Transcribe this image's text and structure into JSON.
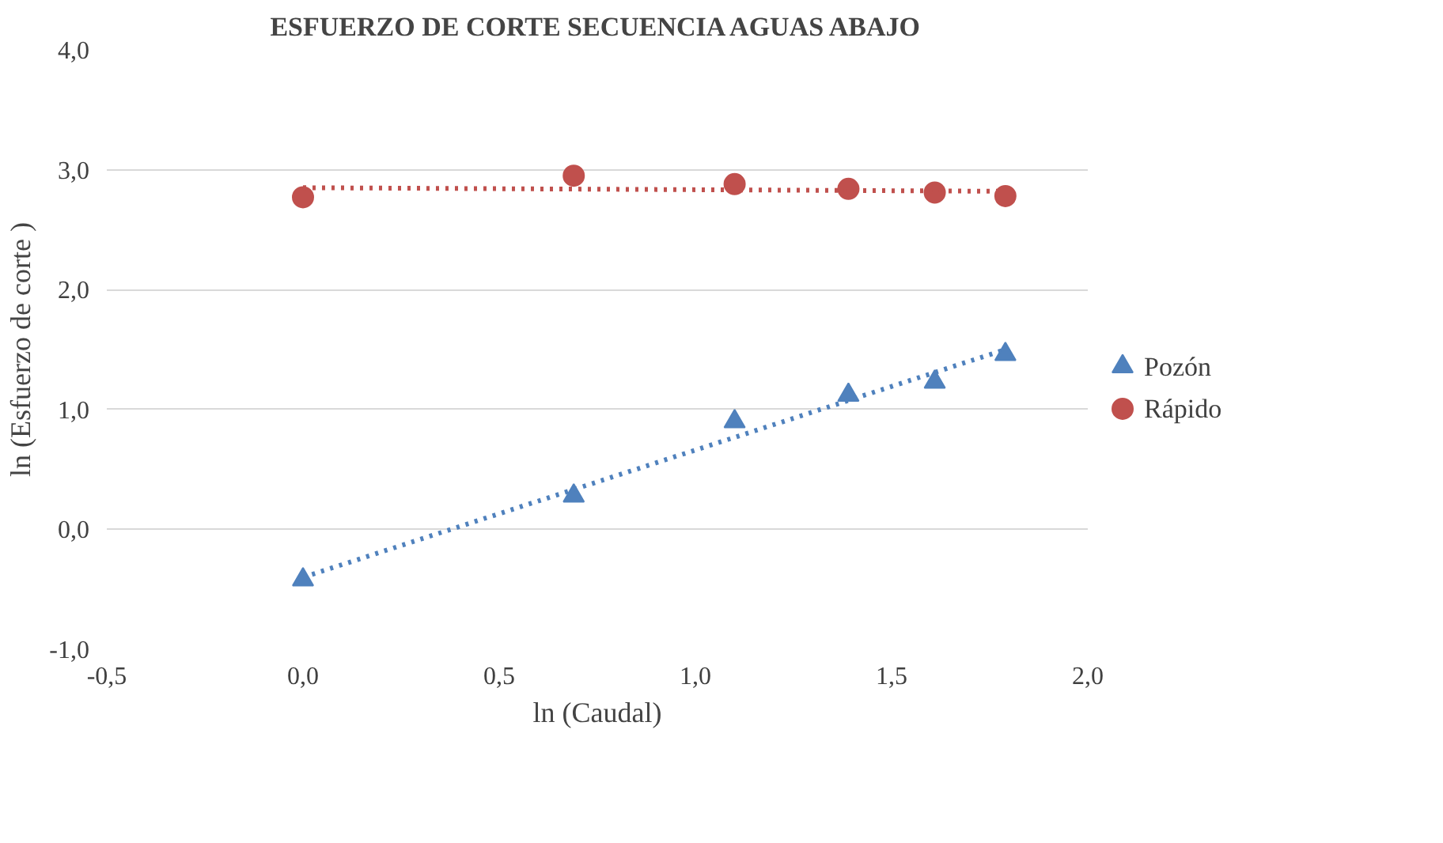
{
  "chart_data": {
    "type": "scatter",
    "title": "ESFUERZO DE CORTE SECUENCIA AGUAS ABAJO",
    "xlabel": "ln (Caudal)",
    "ylabel": "ln (Esfuerzo de corte )",
    "xlim": [
      -0.5,
      2.0
    ],
    "xticks": [
      {
        "value": -0.5,
        "label": "-0,5"
      },
      {
        "value": 0,
        "label": "0,0"
      },
      {
        "value": 0.5,
        "label": "0,5"
      },
      {
        "value": 1.0,
        "label": "1,0"
      },
      {
        "value": 1.5,
        "label": "1,5"
      },
      {
        "value": 2.0,
        "label": "2,0"
      }
    ],
    "ylim": [
      -1.0,
      4.0
    ],
    "yticks": [
      {
        "value": -1,
        "label": "-1,0"
      },
      {
        "value": 0,
        "label": "0,0"
      },
      {
        "value": 1,
        "label": "1,0"
      },
      {
        "value": 2,
        "label": "2,0"
      },
      {
        "value": 3,
        "label": "3,0"
      },
      {
        "value": 4,
        "label": "4,0"
      }
    ],
    "grid": "y",
    "legend": "right",
    "series": [
      {
        "name": "Pozón",
        "marker": "triangle",
        "color": "#4f81bd",
        "x": [
          0,
          0.69,
          1.1,
          1.39,
          1.61,
          1.79
        ],
        "values": [
          -0.42,
          0.28,
          0.9,
          1.12,
          1.23,
          1.46
        ]
      },
      {
        "name": "Rápido",
        "marker": "circle",
        "color": "#c0504d",
        "x": [
          0,
          0.69,
          1.1,
          1.39,
          1.61,
          1.79
        ],
        "values": [
          2.77,
          2.95,
          2.88,
          2.84,
          2.81,
          2.78
        ]
      },
      {
        "type": "line",
        "line_style": "dotted",
        "color": "#4f81bd",
        "x": [
          0,
          1.79
        ],
        "values": [
          -0.4,
          1.5
        ]
      },
      {
        "type": "line",
        "line_style": "dotted",
        "color": "#c0504d",
        "x": [
          0,
          1.79
        ],
        "values": [
          2.85,
          2.82
        ]
      }
    ]
  }
}
